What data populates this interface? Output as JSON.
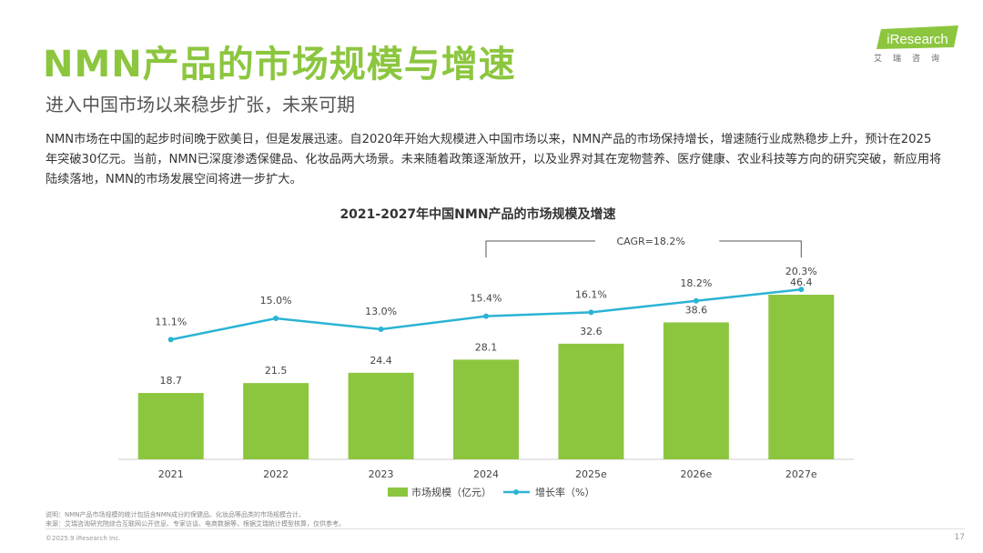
{
  "slide": {
    "title": "NMN产品的市场规模与增速",
    "subtitle": "进入中国市场以来稳步扩张，未来可期",
    "body": "NMN市场在中国的起步时间晚于欧美日，但是发展迅速。自2020年开始大规模进入中国市场以来，NMN产品的市场保持增长，增速随行业成熟稳步上升，预计在2025年突破30亿元。当前，NMN已深度渗透保健品、化妆品两大场景。未来随着政策逐渐放开，以及业界对其在宠物营养、医疗健康、农业科技等方向的研究突破，新应用将陆续落地，NMN的市场发展空间将进一步扩大。",
    "logo_text": "iResearch",
    "logo_sub": "艾瑞咨询",
    "note": "说明：NMN产品市场规模的统计包括含NMN成分的保健品、化妆品等品类的市场规模合计。",
    "source": "来源：艾瑞咨询研究院综合互联网公开信息、专家访谈、电商数据等，根据艾瑞统计模型核算，仅供参考。",
    "copyright": "©2025.9 iResearch Inc.",
    "page_number": "17"
  },
  "colors": {
    "accent": "#8cc63f",
    "line": "#2bb3d4"
  },
  "chart_data": {
    "type": "bar",
    "title": "2021-2027年中国NMN产品的市场规模及增速",
    "categories": [
      "2021",
      "2022",
      "2023",
      "2024",
      "2025e",
      "2026e",
      "2027e"
    ],
    "series": [
      {
        "name": "市场规模（亿元）",
        "type": "bar",
        "values": [
          18.7,
          21.5,
          24.4,
          28.1,
          32.6,
          38.6,
          46.4
        ]
      },
      {
        "name": "增长率（%）",
        "type": "line",
        "values": [
          11.1,
          15.0,
          13.0,
          15.4,
          16.1,
          18.2,
          20.3
        ],
        "labels": [
          "11.1%",
          "15.0%",
          "13.0%",
          "15.4%",
          "16.1%",
          "18.2%",
          "20.3%"
        ]
      }
    ],
    "bar_ylim": [
      0,
      50
    ],
    "annotation": "CAGR=18.2%",
    "legend_position": "bottom"
  }
}
